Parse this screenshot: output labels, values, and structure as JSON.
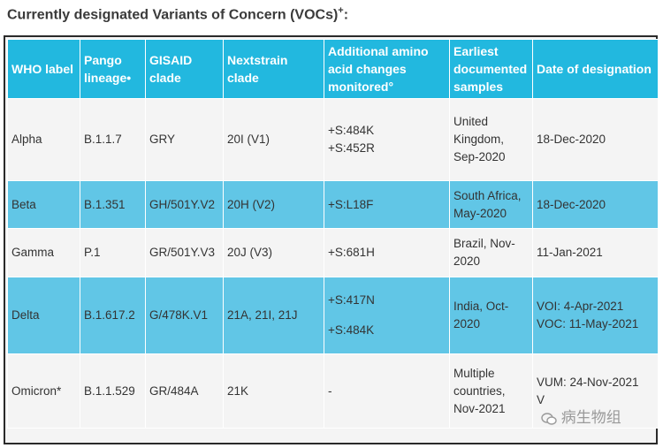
{
  "title": {
    "text": "Currently designated Variants of Concern (VOCs)",
    "sup": "+",
    "suffix": ":"
  },
  "headers": [
    "WHO label",
    "Pango lineage•",
    "GISAID clade",
    "Nextstrain clade",
    "Additional amino acid changes monitored°",
    "Earliest documented samples",
    "Date of designation"
  ],
  "rows": [
    {
      "who": "Alpha",
      "pango": "B.1.1.7",
      "gisaid": "GRY",
      "nextstrain": "20I (V1)",
      "aa": [
        "+S:484K",
        "+S:452R"
      ],
      "earliest": "United Kingdom, Sep-2020",
      "date": [
        "18-Dec-2020"
      ]
    },
    {
      "who": "Beta",
      "pango": "B.1.351",
      "gisaid": "GH/501Y.V2",
      "nextstrain": "20H (V2)",
      "aa": [
        "+S:L18F"
      ],
      "earliest": "South Africa, May-2020",
      "date": [
        "18-Dec-2020"
      ]
    },
    {
      "who": "Gamma",
      "pango": "P.1",
      "gisaid": "GR/501Y.V3",
      "nextstrain": "20J (V3)",
      "aa": [
        "+S:681H"
      ],
      "earliest": "Brazil, Nov-2020",
      "date": [
        "11-Jan-2021"
      ]
    },
    {
      "who": "Delta",
      "pango": "B.1.617.2",
      "gisaid": "G/478K.V1",
      "nextstrain": "21A, 21I, 21J",
      "aa": [
        "+S:417N",
        "+S:484K"
      ],
      "earliest": "India, Oct-2020",
      "date": [
        "VOI: 4-Apr-2021",
        "VOC: 11-May-2021"
      ]
    },
    {
      "who": "Omicron*",
      "pango": "B.1.1.529",
      "gisaid": "GR/484A",
      "nextstrain": "21K",
      "aa": [
        "-"
      ],
      "earliest": "Multiple countries, Nov-2021",
      "date": [
        "VUM: 24-Nov-2021",
        "V"
      ]
    }
  ],
  "watermark": "病生物组"
}
